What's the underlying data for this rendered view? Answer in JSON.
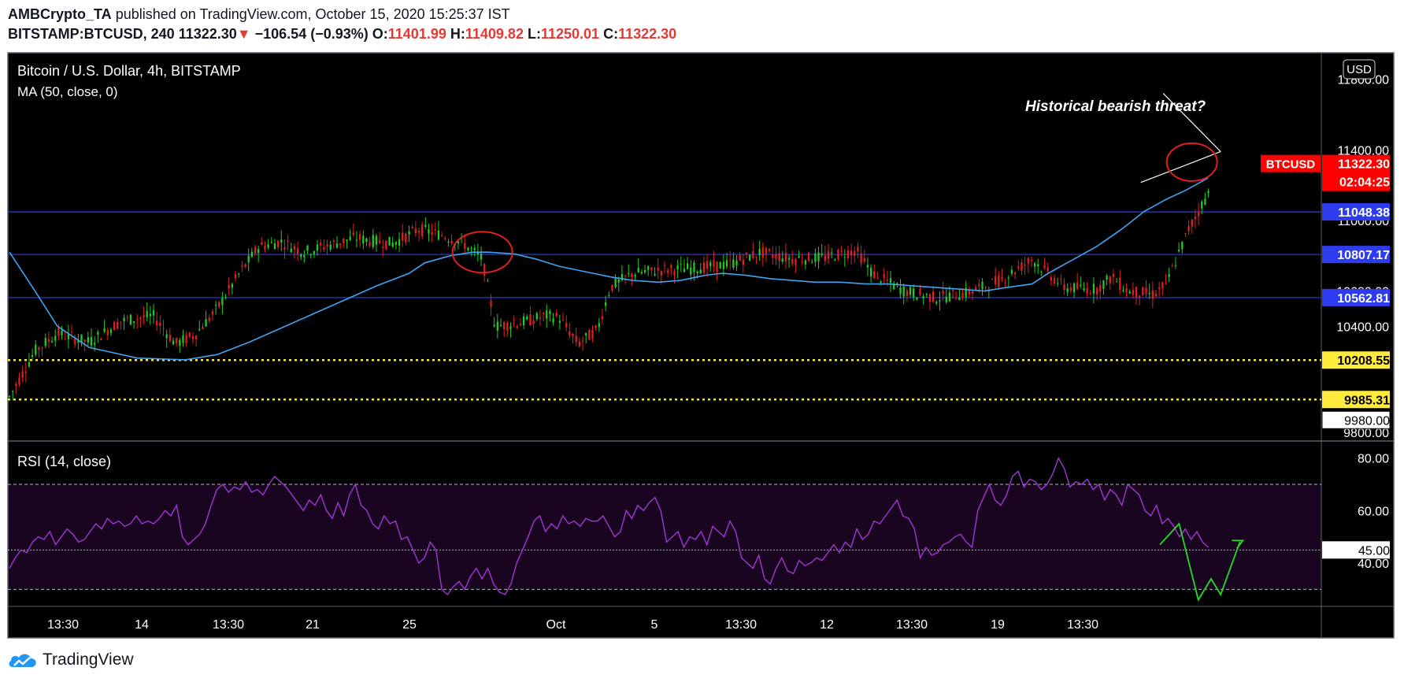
{
  "header": {
    "publisher": "AMBCrypto_TA",
    "published_text": "published on TradingView.com, October 15, 2020 15:25:37 IST",
    "symbol": "BITSTAMP:BTCUSD, 240",
    "last": "11322.30",
    "change": "−106.54 (−0.93%)",
    "o_label": "O:",
    "o": "11401.99",
    "h_label": "H:",
    "h": "11409.82",
    "l_label": "L:",
    "l": "11250.01",
    "c_label": "C:",
    "c": "11322.30"
  },
  "chart": {
    "title": "Bitcoin / U.S. Dollar, 4h, BITSTAMP",
    "ma_label": "MA (50, close, 0)",
    "annotation": "Historical bearish threat?",
    "currency_button": "USD",
    "price_badge": "BTCUSD",
    "price_value": "11322.30",
    "countdown": "02:04:25"
  },
  "rsi": {
    "label": "RSI (14, close)"
  },
  "footer": {
    "brand": "TradingView"
  },
  "colors": {
    "background": "#000000",
    "bull": "#26c826",
    "bear": "#e02020",
    "ma": "#3fa3f0",
    "rsi": "#a236d6",
    "rsi_band": "#1a0520",
    "support_lines": "#1f3bd8",
    "dotted_lines": "#ffeb3b",
    "projection": "#22dd22",
    "highlight_circle": "#e02020",
    "price_red": "#ff0000"
  },
  "chart_data": {
    "type": "candlestick",
    "price_axis": {
      "ylim": [
        9750,
        11950
      ],
      "ticks": [
        "11800.00",
        "11400.00",
        "10400.00",
        "9800.00"
      ],
      "partially_hidden_ticks": [
        "11000.00",
        "10600.00"
      ]
    },
    "x_ticks": [
      "13:30",
      "14",
      "13:30",
      "21",
      "25",
      "Oct",
      "5",
      "13:30",
      "12",
      "13:30",
      "19",
      "13:30"
    ],
    "horizontal_levels": [
      {
        "value": 11048.38,
        "label": "11048.38",
        "style": "solid-blue"
      },
      {
        "value": 10807.17,
        "label": "10807.17",
        "style": "solid-blue"
      },
      {
        "value": 10562.81,
        "label": "10562.81",
        "style": "solid-blue"
      },
      {
        "value": 10208.55,
        "label": "10208.55",
        "style": "dotted-yellow"
      },
      {
        "value": 9985.31,
        "label": "9985.31",
        "style": "dotted-yellow"
      }
    ],
    "crosshair_label": "9980.00",
    "ma_points": [
      [
        0,
        10820
      ],
      [
        8,
        10600
      ],
      [
        15,
        10400
      ],
      [
        25,
        10280
      ],
      [
        40,
        10220
      ],
      [
        55,
        10210
      ],
      [
        65,
        10240
      ],
      [
        75,
        10310
      ],
      [
        85,
        10390
      ],
      [
        95,
        10470
      ],
      [
        105,
        10550
      ],
      [
        115,
        10630
      ],
      [
        125,
        10700
      ],
      [
        130,
        10760
      ],
      [
        138,
        10800
      ],
      [
        145,
        10820
      ],
      [
        150,
        10820
      ],
      [
        158,
        10810
      ],
      [
        165,
        10780
      ],
      [
        172,
        10740
      ],
      [
        180,
        10710
      ],
      [
        188,
        10680
      ],
      [
        195,
        10660
      ],
      [
        203,
        10650
      ],
      [
        210,
        10660
      ],
      [
        218,
        10690
      ],
      [
        223,
        10700
      ],
      [
        230,
        10690
      ],
      [
        238,
        10670
      ],
      [
        245,
        10660
      ],
      [
        252,
        10650
      ],
      [
        260,
        10650
      ],
      [
        268,
        10640
      ],
      [
        275,
        10640
      ],
      [
        282,
        10630
      ],
      [
        290,
        10620
      ],
      [
        298,
        10610
      ],
      [
        305,
        10600
      ],
      [
        312,
        10620
      ],
      [
        320,
        10640
      ],
      [
        325,
        10700
      ],
      [
        333,
        10780
      ],
      [
        340,
        10850
      ],
      [
        348,
        10950
      ],
      [
        355,
        11050
      ],
      [
        362,
        11120
      ],
      [
        368,
        11170
      ],
      [
        375,
        11240
      ]
    ],
    "ohlc": [],
    "trendlines": [
      {
        "from": [
          361,
          11720
        ],
        "to": [
          379,
          11390
        ]
      },
      {
        "from": [
          354,
          11215
        ],
        "to": [
          379,
          11390
        ]
      }
    ],
    "rsi": {
      "ylim": [
        25,
        85
      ],
      "ticks": [
        "80.00",
        "60.00",
        "40.00"
      ],
      "band": [
        30,
        70
      ],
      "mid_level": {
        "value": 45.0,
        "label": "45.00"
      },
      "values": [
        38,
        42,
        45,
        44,
        48,
        50,
        49,
        52,
        47,
        50,
        53,
        51,
        48,
        49,
        52,
        55,
        53,
        57,
        55,
        56,
        54,
        55,
        58,
        55,
        56,
        55,
        57,
        60,
        58,
        62,
        50,
        47,
        49,
        51,
        55,
        62,
        68,
        70,
        67,
        69,
        68,
        71,
        67,
        68,
        66,
        70,
        73,
        71,
        69,
        66,
        63,
        60,
        64,
        62,
        66,
        60,
        57,
        63,
        58,
        66,
        70,
        62,
        60,
        55,
        53,
        58,
        55,
        56,
        49,
        50,
        45,
        40,
        42,
        48,
        45,
        30,
        28,
        31,
        33,
        30,
        35,
        38,
        34,
        38,
        32,
        29,
        28,
        32,
        40,
        45,
        50,
        56,
        58,
        52,
        55,
        53,
        58,
        55,
        56,
        54,
        57,
        56,
        56,
        58,
        54,
        50,
        52,
        60,
        57,
        62,
        60,
        63,
        65,
        60,
        48,
        50,
        52,
        46,
        50,
        49,
        52,
        47,
        54,
        52,
        50,
        56,
        52,
        42,
        40,
        38,
        43,
        34,
        32,
        38,
        42,
        37,
        36,
        41,
        39,
        40,
        42,
        41,
        44,
        47,
        44,
        48,
        46,
        53,
        49,
        51,
        56,
        55,
        58,
        61,
        64,
        58,
        57,
        53,
        42,
        46,
        43,
        44,
        47,
        48,
        50,
        51,
        48,
        46,
        60,
        65,
        70,
        64,
        62,
        66,
        73,
        75,
        69,
        72,
        71,
        68,
        70,
        74,
        80,
        76,
        69,
        71,
        70,
        72,
        68,
        70,
        64,
        68,
        66,
        62,
        70,
        68,
        66,
        60,
        58,
        62,
        55,
        57,
        54,
        50,
        53,
        49,
        52,
        48,
        46
      ],
      "projection": [
        [
          360,
          47
        ],
        [
          366,
          55
        ],
        [
          372,
          26
        ],
        [
          376,
          34
        ],
        [
          379,
          28
        ],
        [
          385,
          48
        ]
      ]
    }
  }
}
